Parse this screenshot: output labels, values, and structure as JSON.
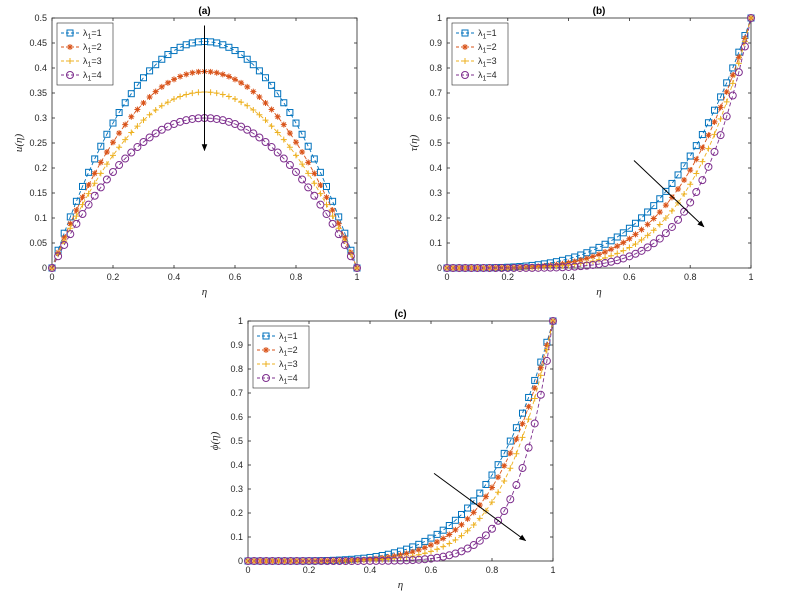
{
  "chart_data": [
    {
      "panel": "(a)",
      "title": "(a)",
      "type": "line",
      "xlabel": "η",
      "ylabel": "u(η)",
      "xlim": [
        0,
        1
      ],
      "ylim": [
        0,
        0.5
      ],
      "xticks": [
        0,
        0.2,
        0.4,
        0.6,
        0.8,
        1
      ],
      "xtick_labels": [
        "0",
        "0.2",
        "0.4",
        "0.6",
        "0.8",
        "1"
      ],
      "yticks": [
        0,
        0.05,
        0.1,
        0.15,
        0.2,
        0.25,
        0.3,
        0.35,
        0.4,
        0.45,
        0.5
      ],
      "ytick_labels": [
        "0",
        "0.05",
        "0.1",
        "0.15",
        "0.2",
        "0.25",
        "0.3",
        "0.35",
        "0.4",
        "0.45",
        "0.5"
      ],
      "legend_position": "top-left",
      "profile": "parabolic",
      "series": [
        {
          "name": "λ1=1",
          "sub_main": "λ",
          "sub_index": "1",
          "sub_rest": "=1",
          "peak": 0.453,
          "color": "#0072BD",
          "marker": "square"
        },
        {
          "name": "λ1=2",
          "sub_main": "λ",
          "sub_index": "1",
          "sub_rest": "=2",
          "peak": 0.393,
          "color": "#D95319",
          "marker": "asterisk"
        },
        {
          "name": "λ1=3",
          "sub_main": "λ",
          "sub_index": "1",
          "sub_rest": "=3",
          "peak": 0.352,
          "color": "#EDB120",
          "marker": "plus"
        },
        {
          "name": "λ1=4",
          "sub_main": "λ",
          "sub_index": "1",
          "sub_rest": "=4",
          "peak": 0.3,
          "color": "#7E2F8E",
          "marker": "circle"
        }
      ],
      "arrow": {
        "from": [
          0.5,
          0.485
        ],
        "to": [
          0.5,
          0.235
        ]
      }
    },
    {
      "panel": "(b)",
      "title": "(b)",
      "type": "line",
      "xlabel": "η",
      "ylabel": "τ(η)",
      "xlim": [
        0,
        1
      ],
      "ylim": [
        0,
        1
      ],
      "xticks": [
        0,
        0.2,
        0.4,
        0.6,
        0.8,
        1
      ],
      "xtick_labels": [
        "0",
        "0.2",
        "0.4",
        "0.6",
        "0.8",
        "1"
      ],
      "yticks": [
        0,
        0.1,
        0.2,
        0.3,
        0.4,
        0.5,
        0.6,
        0.7,
        0.8,
        0.9,
        1
      ],
      "ytick_labels": [
        "0",
        "0.1",
        "0.2",
        "0.3",
        "0.4",
        "0.5",
        "0.6",
        "0.7",
        "0.8",
        "0.9",
        "1"
      ],
      "legend_position": "top-left",
      "profile": "power",
      "series": [
        {
          "name": "λ1=1",
          "sub_main": "λ",
          "sub_index": "1",
          "sub_rest": "=1",
          "exponent": 3.6,
          "color": "#0072BD",
          "marker": "square"
        },
        {
          "name": "λ1=2",
          "sub_main": "λ",
          "sub_index": "1",
          "sub_rest": "=2",
          "exponent": 4.2,
          "color": "#D95319",
          "marker": "asterisk"
        },
        {
          "name": "λ1=3",
          "sub_main": "λ",
          "sub_index": "1",
          "sub_rest": "=3",
          "exponent": 4.9,
          "color": "#EDB120",
          "marker": "plus"
        },
        {
          "name": "λ1=4",
          "sub_main": "λ",
          "sub_index": "1",
          "sub_rest": "=4",
          "exponent": 6.0,
          "color": "#7E2F8E",
          "marker": "circle"
        }
      ],
      "arrow": {
        "from": [
          0.615,
          0.43
        ],
        "to": [
          0.845,
          0.165
        ]
      }
    },
    {
      "panel": "(c)",
      "title": "(c)",
      "type": "line",
      "xlabel": "η",
      "ylabel": "ϕ(η)",
      "xlim": [
        0,
        1
      ],
      "ylim": [
        0,
        1
      ],
      "xticks": [
        0,
        0.2,
        0.4,
        0.6,
        0.8,
        1
      ],
      "xtick_labels": [
        "0",
        "0.2",
        "0.4",
        "0.6",
        "0.8",
        "1"
      ],
      "yticks": [
        0,
        0.1,
        0.2,
        0.3,
        0.4,
        0.5,
        0.6,
        0.7,
        0.8,
        0.9,
        1
      ],
      "ytick_labels": [
        "0",
        "0.1",
        "0.2",
        "0.3",
        "0.4",
        "0.5",
        "0.6",
        "0.7",
        "0.8",
        "0.9",
        "1"
      ],
      "legend_position": "top-left",
      "profile": "power",
      "series": [
        {
          "name": "λ1=1",
          "sub_main": "λ",
          "sub_index": "1",
          "sub_rest": "=1",
          "exponent": 4.6,
          "color": "#0072BD",
          "marker": "square"
        },
        {
          "name": "λ1=2",
          "sub_main": "λ",
          "sub_index": "1",
          "sub_rest": "=2",
          "exponent": 5.3,
          "color": "#D95319",
          "marker": "asterisk"
        },
        {
          "name": "λ1=3",
          "sub_main": "λ",
          "sub_index": "1",
          "sub_rest": "=3",
          "exponent": 6.3,
          "color": "#EDB120",
          "marker": "plus"
        },
        {
          "name": "λ1=4",
          "sub_main": "λ",
          "sub_index": "1",
          "sub_rest": "=4",
          "exponent": 9.0,
          "color": "#7E2F8E",
          "marker": "circle"
        }
      ],
      "arrow": {
        "from": [
          0.61,
          0.365
        ],
        "to": [
          0.91,
          0.085
        ]
      }
    }
  ]
}
